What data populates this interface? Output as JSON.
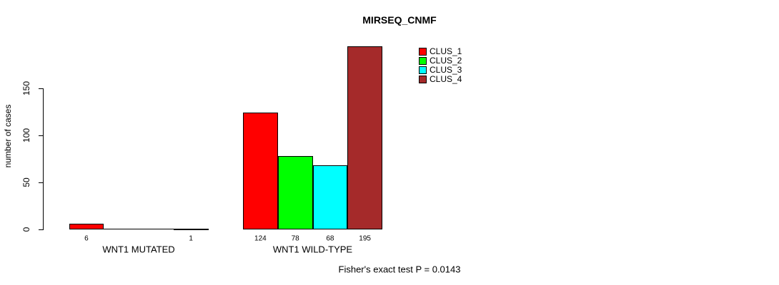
{
  "chart_data": {
    "type": "bar",
    "title": "MIRSEQ_CNMF",
    "ylabel": "number of cases",
    "footer": "Fisher's exact test P = 0.0143",
    "yticks": [
      0,
      50,
      100,
      150
    ],
    "ylim": [
      0,
      150
    ],
    "grid": false,
    "legend_position": "top-right",
    "series": [
      {
        "name": "CLUS_1",
        "color": "#FF0000"
      },
      {
        "name": "CLUS_2",
        "color": "#00FF00"
      },
      {
        "name": "CLUS_3",
        "color": "#00FFFF"
      },
      {
        "name": "CLUS_4",
        "color": "#A52A2A"
      }
    ],
    "groups": [
      {
        "label": "WNT1 MUTATED",
        "values": [
          6,
          0,
          0,
          1
        ],
        "value_labels": [
          "6",
          "",
          "",
          "1"
        ]
      },
      {
        "label": "WNT1 WILD-TYPE",
        "values": [
          124,
          78,
          68,
          195
        ],
        "value_labels": [
          "124",
          "78",
          "68",
          "195"
        ]
      }
    ],
    "axis_color": "#000000",
    "background_color": "#FFFFFF"
  }
}
